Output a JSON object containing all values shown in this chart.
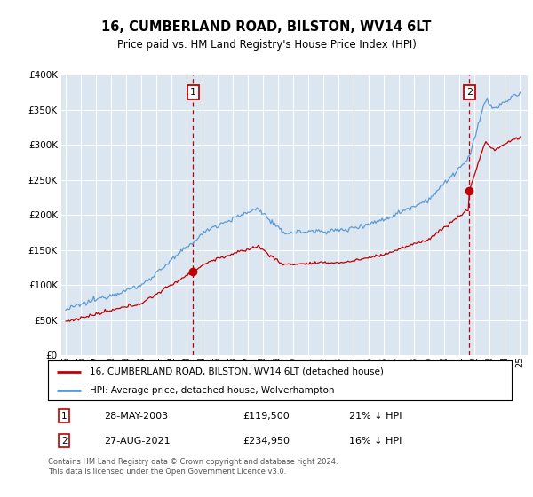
{
  "title": "16, CUMBERLAND ROAD, BILSTON, WV14 6LT",
  "subtitle": "Price paid vs. HM Land Registry's House Price Index (HPI)",
  "hpi_label": "HPI: Average price, detached house, Wolverhampton",
  "property_label": "16, CUMBERLAND ROAD, BILSTON, WV14 6LT (detached house)",
  "sale1_date": "28-MAY-2003",
  "sale1_price": 119500,
  "sale1_note": "21% ↓ HPI",
  "sale2_date": "27-AUG-2021",
  "sale2_price": 234950,
  "sale2_note": "16% ↓ HPI",
  "footer": "Contains HM Land Registry data © Crown copyright and database right 2024.\nThis data is licensed under the Open Government Licence v3.0.",
  "hpi_color": "#5b9bd5",
  "property_color": "#c00000",
  "sale_marker_color": "#c00000",
  "annotation_box_color": "#c00000",
  "background_color": "#dce6f1",
  "ylim": [
    0,
    400000
  ],
  "yticks": [
    0,
    50000,
    100000,
    150000,
    200000,
    250000,
    300000,
    350000,
    400000
  ]
}
